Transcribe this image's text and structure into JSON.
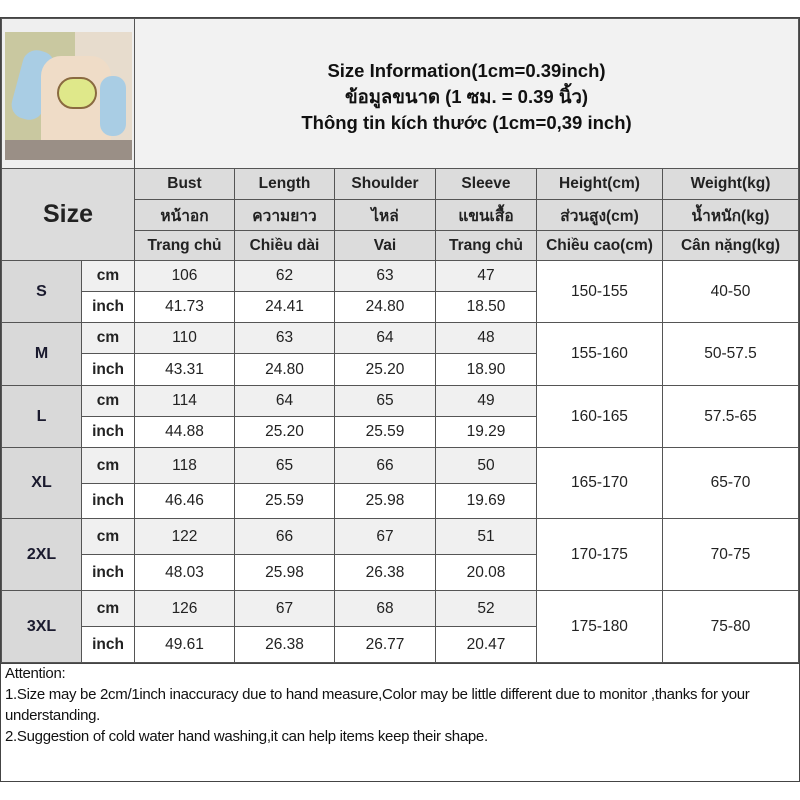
{
  "title_lines": [
    "Size Information(1cm=0.39inch)",
    "ข้อมูลขนาด (1 ซม. = 0.39 นิ้ว)",
    "Thông tin kích thước (1cm=0,39 inch)"
  ],
  "size_header": "Size",
  "columns": [
    [
      "Bust",
      "หน้าอก",
      "Trang chủ"
    ],
    [
      "Length",
      "ความยาว",
      "Chiều dài"
    ],
    [
      "Shoulder",
      "ไหล่",
      "Vai"
    ],
    [
      "Sleeve",
      "แขนเสื้อ",
      "Trang chủ"
    ],
    [
      "Height(cm)",
      "ส่วนสูง(cm)",
      "Chiều cao(cm)"
    ],
    [
      "Weight(kg)",
      "น้ำหนัก(kg)",
      "Cân nặng(kg)"
    ]
  ],
  "units": [
    "cm",
    "inch"
  ],
  "rows": [
    {
      "size": "S",
      "cm": [
        "106",
        "62",
        "63",
        "47"
      ],
      "inch": [
        "41.73",
        "24.41",
        "24.80",
        "18.50"
      ],
      "height": "150-155",
      "weight": "40-50"
    },
    {
      "size": "M",
      "cm": [
        "110",
        "63",
        "64",
        "48"
      ],
      "inch": [
        "43.31",
        "24.80",
        "25.20",
        "18.90"
      ],
      "height": "155-160",
      "weight": "50-57.5"
    },
    {
      "size": "L",
      "cm": [
        "114",
        "64",
        "65",
        "49"
      ],
      "inch": [
        "44.88",
        "25.20",
        "25.59",
        "19.29"
      ],
      "height": "160-165",
      "weight": "57.5-65"
    },
    {
      "size": "XL",
      "cm": [
        "118",
        "65",
        "66",
        "50"
      ],
      "inch": [
        "46.46",
        "25.59",
        "25.98",
        "19.69"
      ],
      "height": "165-170",
      "weight": "65-70"
    },
    {
      "size": "2XL",
      "cm": [
        "122",
        "66",
        "67",
        "51"
      ],
      "inch": [
        "48.03",
        "25.98",
        "26.38",
        "20.08"
      ],
      "height": "170-175",
      "weight": "70-75"
    },
    {
      "size": "3XL",
      "cm": [
        "126",
        "67",
        "68",
        "52"
      ],
      "inch": [
        "49.61",
        "26.38",
        "26.77",
        "20.47"
      ],
      "height": "175-180",
      "weight": "75-80"
    }
  ],
  "attention": {
    "heading": "Attention:",
    "notes": [
      "1.Size may be 2cm/1inch inaccuracy due to hand measure,Color may be little different due to monitor ,thanks for your understanding.",
      "2.Suggestion of cold water hand washing,it can help items keep their shape."
    ]
  },
  "colors": {
    "header_bg": "#dcdcdc",
    "title_bg": "#f2f2f2",
    "cm_row_bg": "#f0f0f0",
    "border": "#555555"
  }
}
